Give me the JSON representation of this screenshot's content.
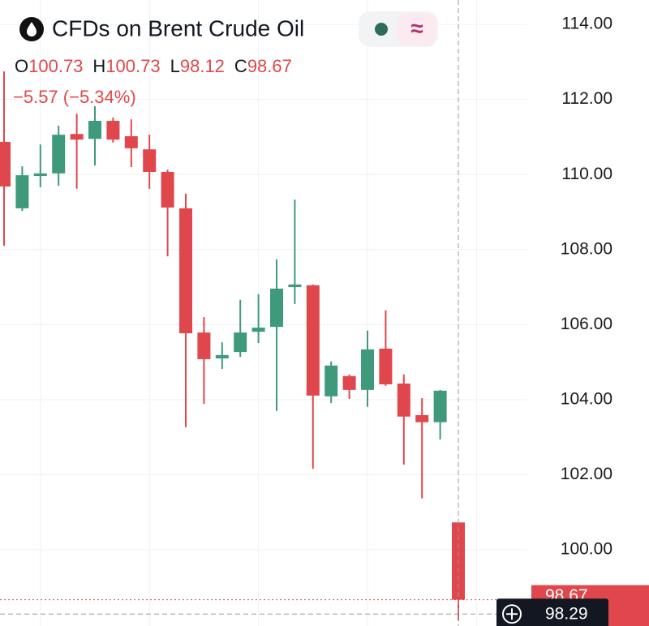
{
  "chart_data": {
    "type": "candlestick",
    "title": "CFDs on Brent Crude Oil",
    "ohlc_letters": [
      "O",
      "H",
      "L",
      "C"
    ],
    "change_label": "−5.57 (−5.34%)",
    "up_color": "#3f9a7c",
    "down_color": "#e0474c",
    "open": [
      110.87,
      109.1,
      109.96,
      110.03,
      111.08,
      110.95,
      111.43,
      111.02,
      110.67,
      110.07,
      109.1,
      105.79,
      105.1,
      105.27,
      105.81,
      105.94,
      107.0,
      107.05,
      104.09,
      104.63,
      104.26,
      105.36,
      104.43,
      103.59,
      103.4,
      100.73
    ],
    "high": [
      112.75,
      110.22,
      110.8,
      111.3,
      111.62,
      111.82,
      111.52,
      111.47,
      111.06,
      110.13,
      109.49,
      106.2,
      105.53,
      106.66,
      106.81,
      107.74,
      109.33,
      107.07,
      105.02,
      104.67,
      105.84,
      106.38,
      104.67,
      104.04,
      104.26,
      100.73
    ],
    "low": [
      108.1,
      109.03,
      109.66,
      109.7,
      109.62,
      110.24,
      110.85,
      110.2,
      109.62,
      107.82,
      103.27,
      103.89,
      104.82,
      105.14,
      105.51,
      103.7,
      106.55,
      102.16,
      103.91,
      104.02,
      103.81,
      104.37,
      102.27,
      101.37,
      102.94,
      98.12
    ],
    "close": [
      109.68,
      109.98,
      110.03,
      111.06,
      110.93,
      111.43,
      110.93,
      110.7,
      110.07,
      109.12,
      105.77,
      105.08,
      105.19,
      105.79,
      105.92,
      106.96,
      107.07,
      104.11,
      104.91,
      104.26,
      105.34,
      104.41,
      103.55,
      103.4,
      104.24,
      98.67
    ],
    "ylim": [
      97.97,
      114.65
    ],
    "yticks": [
      {
        "value": 100,
        "label": "100.00"
      },
      {
        "value": 102,
        "label": "102.00"
      },
      {
        "value": 104,
        "label": "104.00"
      },
      {
        "value": 106,
        "label": "106.00"
      },
      {
        "value": 108,
        "label": "108.00"
      },
      {
        "value": 110,
        "label": "110.00"
      },
      {
        "value": 112,
        "label": "112.00"
      },
      {
        "value": 114,
        "label": "114.00"
      }
    ],
    "grid": true,
    "crosshair": {
      "value": 98.29
    }
  }
}
